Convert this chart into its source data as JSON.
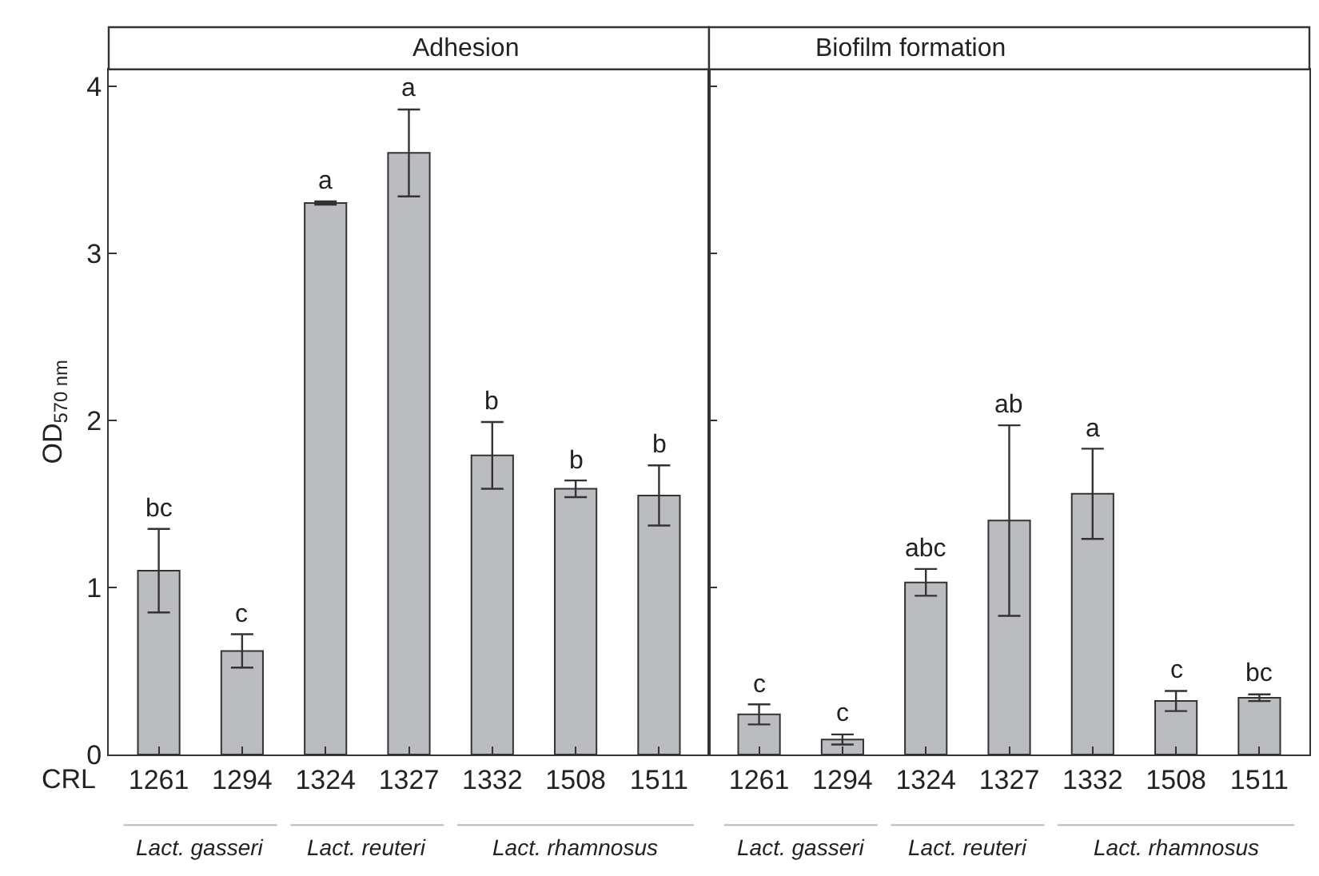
{
  "chart_data": [
    {
      "type": "bar",
      "title": "Adhesion",
      "xlabel": "CRL",
      "ylabel": "OD$_{570 nm}$",
      "categories": [
        "1261",
        "1294",
        "1324",
        "1327",
        "1332",
        "1508",
        "1511"
      ],
      "series": [
        {
          "color": "#bbbcc0",
          "values": [
            1.1,
            0.62,
            3.3,
            3.6,
            1.79,
            1.59,
            1.55
          ],
          "errors": [
            0.25,
            0.1,
            0.01,
            0.26,
            0.2,
            0.05,
            0.18
          ]
        }
      ],
      "ylim": [
        0,
        4.1
      ],
      "yticks": [
        0,
        1,
        2,
        3,
        4
      ],
      "annotations": [
        {
          "text": "bc",
          "x": "1261",
          "y": 1.35
        },
        {
          "text": "c",
          "x": "1294",
          "y": 0.72
        },
        {
          "text": "a",
          "x": "1324",
          "y": 3.31
        },
        {
          "text": "a",
          "x": "1327",
          "y": 3.86
        },
        {
          "text": "b",
          "x": "1332",
          "y": 1.99
        },
        {
          "text": "b",
          "x": "1508",
          "y": 1.64
        },
        {
          "text": "b",
          "x": "1511",
          "y": 1.73
        },
        "Lact. gasseri",
        "Lact. reuteri",
        "Lact. rhamnosus"
      ]
    },
    {
      "type": "bar",
      "title": "Biofilm formation",
      "categories": [
        "1261",
        "1294",
        "1324",
        "1327",
        "1332",
        "1508",
        "1511"
      ],
      "series": [
        {
          "color": "#bbbcc0",
          "values": [
            0.24,
            0.09,
            1.03,
            1.4,
            1.56,
            0.32,
            0.34
          ],
          "errors": [
            0.06,
            0.03,
            0.08,
            0.57,
            0.27,
            0.06,
            0.02
          ]
        }
      ],
      "ylim": [
        0,
        4.1
      ],
      "yticks": [
        0,
        1,
        2,
        3,
        4
      ],
      "tick_labels": "x",
      "annotations": [
        {
          "text": "c",
          "x": "1261",
          "y": 0.3
        },
        {
          "text": "c",
          "x": "1294",
          "y": 0.12
        },
        {
          "text": "abc",
          "x": "1324",
          "y": 1.11
        },
        {
          "text": "ab",
          "x": "1327",
          "y": 1.97
        },
        {
          "text": "a",
          "x": "1332",
          "y": 1.83
        },
        {
          "text": "c",
          "x": "1508",
          "y": 0.38
        },
        {
          "text": "bc",
          "x": "1511",
          "y": 0.36
        },
        "Lact. gasseri",
        "Lact. reuteri",
        "Lact. rhamnosus"
      ]
    }
  ]
}
